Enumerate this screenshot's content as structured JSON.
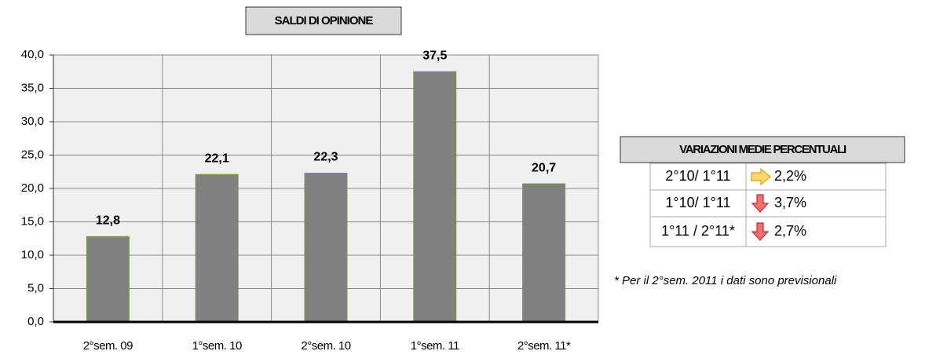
{
  "chart_data": {
    "type": "bar",
    "title": "SALDI DI OPINIONE",
    "categories": [
      "2°sem. 09",
      "1°sem. 10",
      "2°sem. 10",
      "1°sem. 11",
      "2°sem. 11*"
    ],
    "values": [
      12.8,
      22.1,
      22.3,
      37.5,
      20.7
    ],
    "value_labels": [
      "12,8",
      "22,1",
      "22,3",
      "37,5",
      "20,7"
    ],
    "color": "#808080",
    "ylim": [
      0,
      40
    ],
    "yticks": [
      {
        "value": 0,
        "label": "0,0"
      },
      {
        "value": 5,
        "label": "5,0"
      },
      {
        "value": 10,
        "label": "10,0"
      },
      {
        "value": 15,
        "label": "15,0"
      },
      {
        "value": 20,
        "label": "20,0"
      },
      {
        "value": 25,
        "label": "25,0"
      },
      {
        "value": 30,
        "label": "30,0"
      },
      {
        "value": 35,
        "label": "35,0"
      },
      {
        "value": 40,
        "label": "40,0"
      }
    ],
    "grid": true
  },
  "table": {
    "title": "VARIAZIONI MEDIE PERCENTUALI",
    "rows": [
      {
        "period": "2°10/ 1°11",
        "direction": "right",
        "change": "2,2%"
      },
      {
        "period": "1°10/ 1°11",
        "direction": "down",
        "change": "3,7%"
      },
      {
        "period": "1°11 / 2°11*",
        "direction": "down",
        "change": "2,7%"
      }
    ]
  },
  "note": "* Per il 2°sem. 2011 i dati sono previsionali"
}
